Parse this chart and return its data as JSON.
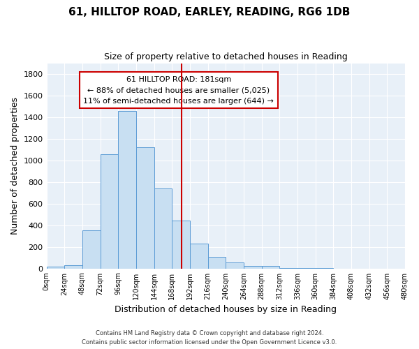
{
  "title": "61, HILLTOP ROAD, EARLEY, READING, RG6 1DB",
  "subtitle": "Size of property relative to detached houses in Reading",
  "xlabel": "Distribution of detached houses by size in Reading",
  "ylabel": "Number of detached properties",
  "bar_edges": [
    0,
    24,
    48,
    72,
    96,
    120,
    144,
    168,
    192,
    216,
    240,
    264,
    288,
    312,
    336,
    360,
    384,
    408,
    432,
    456,
    480
  ],
  "bar_heights": [
    15,
    30,
    355,
    1060,
    1460,
    1120,
    740,
    440,
    230,
    110,
    55,
    25,
    20,
    5,
    2,
    1,
    0,
    0,
    0,
    0
  ],
  "bar_color": "#c8dff2",
  "bar_edgecolor": "#5b9bd5",
  "vline_x": 181,
  "vline_color": "#cc0000",
  "ylim": [
    0,
    1900
  ],
  "yticks": [
    0,
    200,
    400,
    600,
    800,
    1000,
    1200,
    1400,
    1600,
    1800
  ],
  "xtick_labels": [
    "0sqm",
    "24sqm",
    "48sqm",
    "72sqm",
    "96sqm",
    "120sqm",
    "144sqm",
    "168sqm",
    "192sqm",
    "216sqm",
    "240sqm",
    "264sqm",
    "288sqm",
    "312sqm",
    "336sqm",
    "360sqm",
    "384sqm",
    "408sqm",
    "432sqm",
    "456sqm",
    "480sqm"
  ],
  "annotation_title": "61 HILLTOP ROAD: 181sqm",
  "annotation_line1": "← 88% of detached houses are smaller (5,025)",
  "annotation_line2": "11% of semi-detached houses are larger (644) →",
  "footer_line1": "Contains HM Land Registry data © Crown copyright and database right 2024.",
  "footer_line2": "Contains public sector information licensed under the Open Government Licence v3.0.",
  "plot_bg_color": "#e8f0f8",
  "fig_bg_color": "#ffffff",
  "grid_color": "#ffffff"
}
